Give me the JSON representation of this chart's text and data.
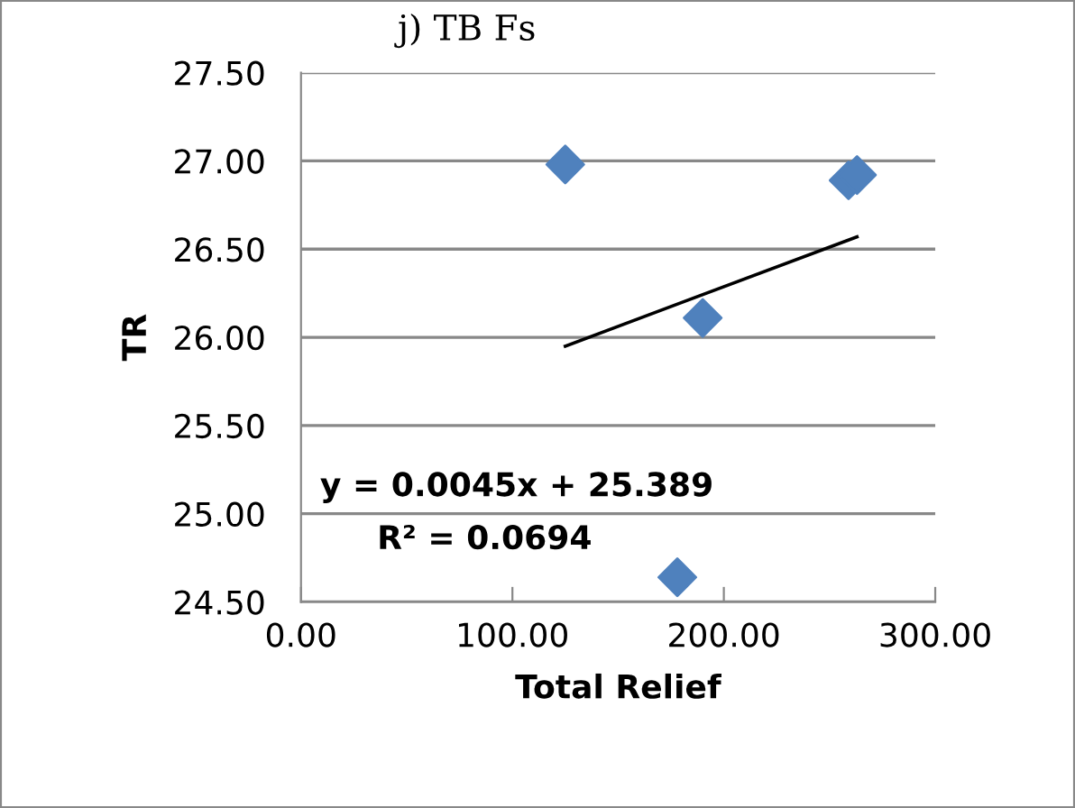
{
  "chart_data": {
    "type": "scatter",
    "title": "j) TB Fs",
    "xlabel": "Total Relief",
    "ylabel": "TR",
    "series": [
      {
        "color": "#4f81bd",
        "marker": "diamond",
        "x": [
          125,
          178,
          190,
          259,
          263
        ],
        "values": [
          26.98,
          24.64,
          26.11,
          26.89,
          26.92
        ]
      },
      {
        "type": "line",
        "color": "#000000",
        "marker": "none",
        "line_style": "solid",
        "x": [
          125,
          263
        ],
        "values": [
          25.95,
          26.57
        ]
      }
    ],
    "annotations": [
      {
        "text": "y = 0.0045x + 25.389"
      },
      {
        "text": "R² = 0.0694"
      }
    ],
    "xlim": [
      0,
      300
    ],
    "xticks": [
      {
        "value": 0,
        "label": "0.00"
      },
      {
        "value": 100,
        "label": "100.00"
      },
      {
        "value": 200,
        "label": "200.00"
      },
      {
        "value": 300,
        "label": "300.00"
      }
    ],
    "ylim": [
      24.5,
      27.5
    ],
    "yticks": [
      {
        "value": 24.5,
        "label": "24.50"
      },
      {
        "value": 25,
        "label": "25.00"
      },
      {
        "value": 25.5,
        "label": "25.50"
      },
      {
        "value": 26,
        "label": "26.00"
      },
      {
        "value": 26.5,
        "label": "26.50"
      },
      {
        "value": 27,
        "label": "27.00"
      },
      {
        "value": 27.5,
        "label": "27.50"
      }
    ],
    "grid": "y",
    "legend": false
  }
}
